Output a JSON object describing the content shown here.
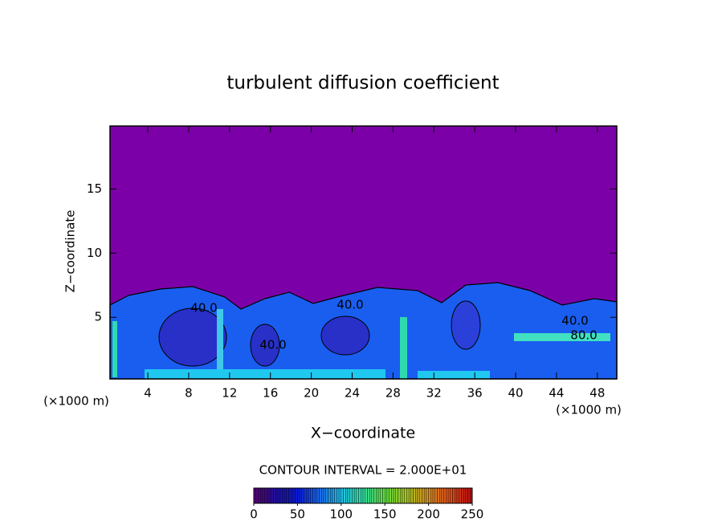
{
  "chart_data": {
    "type": "contour",
    "title": "turbulent diffusion coefficient",
    "x_label": "X−coordinate",
    "y_label": "Z−coordinate",
    "x_unit_left": "(×1000 m)",
    "x_unit_right": "(×1000 m)",
    "xlim": [
      0.3,
      49.9
    ],
    "xticks": [
      4,
      8,
      12,
      16,
      20,
      24,
      28,
      32,
      36,
      40,
      44,
      48
    ],
    "ylim": [
      0.2,
      19.9
    ],
    "yticks": [
      5,
      10,
      15
    ],
    "contour_interval_label": "CONTOUR INTERVAL = 2.000E+01",
    "annotations": [
      "40.0",
      "40.0",
      "40.0",
      "40.0",
      "80.0"
    ],
    "colorbar": {
      "clim": [
        0,
        250
      ],
      "ticks": [
        0,
        50,
        100,
        150,
        200,
        250
      ],
      "colormap": [
        "#5a007a",
        "#20109a",
        "#0a1ad8",
        "#1a6cf0",
        "#20c0e8",
        "#30e0a0",
        "#60e040",
        "#a8c820",
        "#d89020",
        "#e05018",
        "#c01010"
      ]
    }
  }
}
